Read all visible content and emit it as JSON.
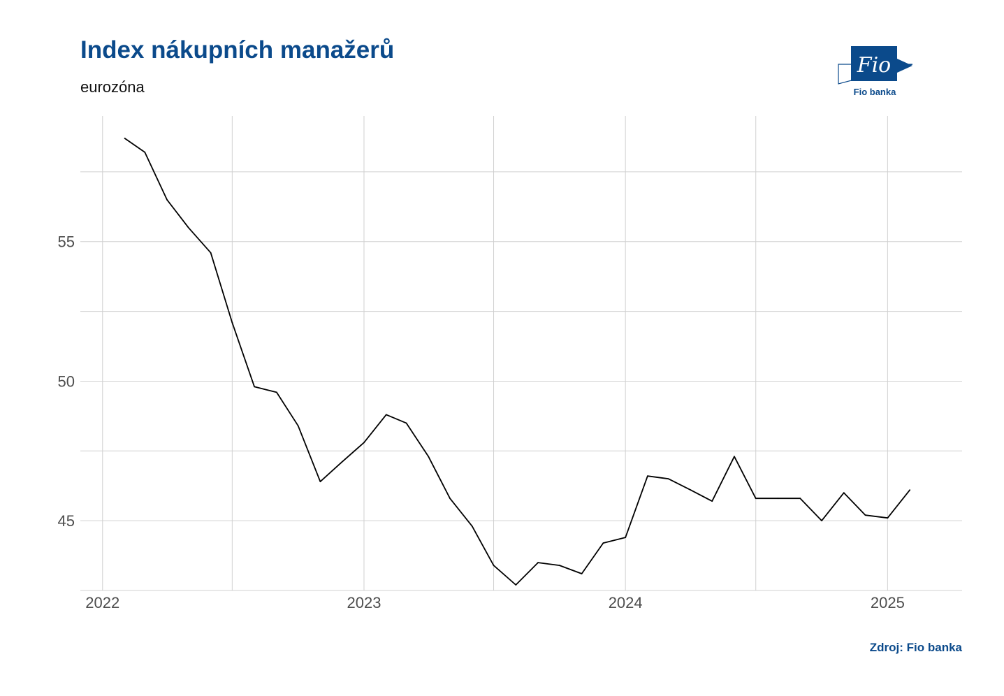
{
  "header": {
    "title": "Index nákupních manažerů",
    "subtitle": "eurozóna"
  },
  "logo": {
    "mark": "Fio",
    "label": "Fio banka",
    "icon": "fio-banka-logo",
    "color": "#0b4a8b"
  },
  "caption": "Zdroj: Fio banka",
  "chart_data": {
    "type": "line",
    "title": "Index nákupních manažerů",
    "subtitle": "eurozóna",
    "xlabel": "",
    "ylabel": "",
    "x_ticks": [
      "2022",
      "2023",
      "2024",
      "2025"
    ],
    "y_ticks": [
      45,
      50,
      55
    ],
    "ylim": [
      42.5,
      59.5
    ],
    "xlim": [
      "2021-12-01",
      "2025-04-15"
    ],
    "grid": true,
    "legend": "none",
    "line_color": "#000000",
    "series": [
      {
        "points": [
          [
            "2022-02-01",
            58.7
          ],
          [
            "2022-03-01",
            58.2
          ],
          [
            "2022-04-01",
            56.5
          ],
          [
            "2022-05-01",
            55.5
          ],
          [
            "2022-06-01",
            54.6
          ],
          [
            "2022-07-01",
            52.1
          ],
          [
            "2022-08-01",
            49.8
          ],
          [
            "2022-09-01",
            49.6
          ],
          [
            "2022-10-01",
            48.4
          ],
          [
            "2022-11-01",
            46.4
          ],
          [
            "2022-12-01",
            47.1
          ],
          [
            "2023-01-01",
            47.8
          ],
          [
            "2023-02-01",
            48.8
          ],
          [
            "2023-03-01",
            48.5
          ],
          [
            "2023-04-01",
            47.3
          ],
          [
            "2023-05-01",
            45.8
          ],
          [
            "2023-06-01",
            44.8
          ],
          [
            "2023-07-01",
            43.4
          ],
          [
            "2023-08-01",
            42.7
          ],
          [
            "2023-09-01",
            43.5
          ],
          [
            "2023-10-01",
            43.4
          ],
          [
            "2023-11-01",
            43.1
          ],
          [
            "2023-12-01",
            44.2
          ],
          [
            "2024-01-01",
            44.4
          ],
          [
            "2024-02-01",
            46.6
          ],
          [
            "2024-03-01",
            46.5
          ],
          [
            "2024-04-01",
            46.1
          ],
          [
            "2024-05-01",
            45.7
          ],
          [
            "2024-06-01",
            47.3
          ],
          [
            "2024-07-01",
            45.8
          ],
          [
            "2024-08-01",
            45.8
          ],
          [
            "2024-09-01",
            45.8
          ],
          [
            "2024-10-01",
            45.0
          ],
          [
            "2024-11-01",
            46.0
          ],
          [
            "2024-12-01",
            45.2
          ],
          [
            "2025-01-01",
            45.1
          ],
          [
            "2025-02-01",
            46.1
          ]
        ]
      }
    ]
  }
}
